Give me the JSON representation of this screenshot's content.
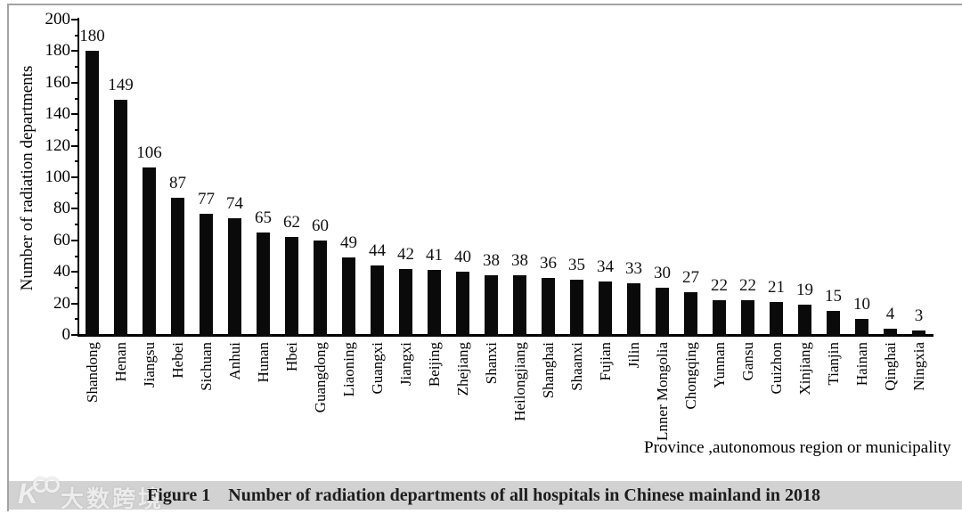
{
  "chart_data": {
    "type": "bar",
    "title": "",
    "xlabel": "Province ,autonomous region or municipality",
    "ylabel": "Number of radiation departments",
    "ylim": [
      0,
      200
    ],
    "ytick_step": 20,
    "minor_ytick_step": 10,
    "grid": false,
    "legend_position": "none",
    "bar_color": "#0a0a0a",
    "categories": [
      "Shandong",
      "Henan",
      "Jiangsu",
      "Hebei",
      "Sichuan",
      "Anhui",
      "Hunan",
      "Hbei",
      "Guangdong",
      "Liaoning",
      "Guangxi",
      "Jiangxi",
      "Beijing",
      "Zhejiang",
      "Shanxi",
      "Heilongjiang",
      "Shanghai",
      "Shaanxi",
      "Fujian",
      "Jilin",
      "Lnner Mongolia",
      "Chongqing",
      "Yunnan",
      "Gansu",
      "Guizhon",
      "Xinjiang",
      "Tianjin",
      "Hainan",
      "Qinghai",
      "Ningxia"
    ],
    "values": [
      180,
      149,
      106,
      87,
      77,
      74,
      65,
      62,
      60,
      49,
      44,
      42,
      41,
      40,
      38,
      38,
      36,
      35,
      34,
      33,
      30,
      27,
      22,
      22,
      21,
      19,
      15,
      10,
      4,
      3
    ]
  },
  "footer": {
    "logo_text": "大数跨境",
    "logo_icon": "k100-watermark",
    "caption_label": "Figure 1",
    "caption_text": "Number of radiation departments of all hospitals in Chinese mainland in 2018",
    "strip_color": "#d2d2d2"
  },
  "colors": {
    "bar": "#0a0a0a",
    "axis": "#000000",
    "frame_border": "#a3a3a3",
    "background": "#ffffff"
  }
}
